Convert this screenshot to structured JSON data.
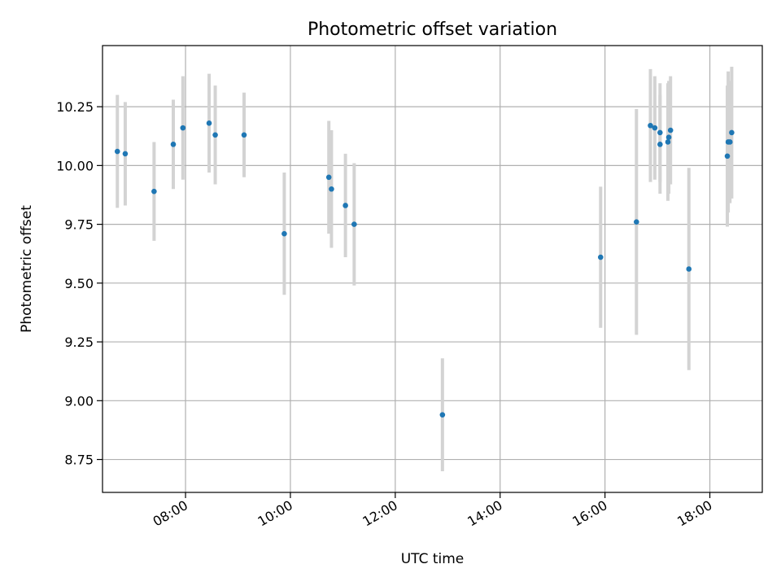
{
  "chart_data": {
    "type": "scatter",
    "title": "Photometric offset variation",
    "xlabel": "UTC time",
    "ylabel": "Photometric offset",
    "x_unit": "hour of day (UTC)",
    "xlim": [
      "06:25",
      "19:00"
    ],
    "ylim": [
      8.61,
      10.51
    ],
    "x_ticks": [
      "08:00",
      "10:00",
      "12:00",
      "14:00",
      "16:00",
      "18:00"
    ],
    "y_ticks": [
      "8.75",
      "9.00",
      "9.25",
      "9.50",
      "9.75",
      "10.00",
      "10.25"
    ],
    "grid": true,
    "legend": "none",
    "colors": {
      "point": "#1f77b4",
      "errorbar": "#d3d3d3",
      "grid": "#b0b0b0"
    },
    "points": [
      {
        "x": "06:42",
        "y": 10.06,
        "err": 0.24
      },
      {
        "x": "06:51",
        "y": 10.05,
        "err": 0.22
      },
      {
        "x": "07:24",
        "y": 9.89,
        "err": 0.21
      },
      {
        "x": "07:46",
        "y": 10.09,
        "err": 0.19
      },
      {
        "x": "07:57",
        "y": 10.16,
        "err": 0.22
      },
      {
        "x": "08:27",
        "y": 10.18,
        "err": 0.21
      },
      {
        "x": "08:34",
        "y": 10.13,
        "err": 0.21
      },
      {
        "x": "09:07",
        "y": 10.13,
        "err": 0.18
      },
      {
        "x": "09:53",
        "y": 9.71,
        "err": 0.26
      },
      {
        "x": "10:44",
        "y": 9.95,
        "err": 0.24
      },
      {
        "x": "10:47",
        "y": 9.9,
        "err": 0.25
      },
      {
        "x": "11:03",
        "y": 9.83,
        "err": 0.22
      },
      {
        "x": "11:13",
        "y": 9.75,
        "err": 0.26
      },
      {
        "x": "12:54",
        "y": 8.94,
        "err": 0.24
      },
      {
        "x": "15:55",
        "y": 9.61,
        "err": 0.3
      },
      {
        "x": "16:36",
        "y": 9.76,
        "err": 0.48
      },
      {
        "x": "16:52",
        "y": 10.17,
        "err": 0.24
      },
      {
        "x": "16:57",
        "y": 10.16,
        "err": 0.22
      },
      {
        "x": "17:03",
        "y": 10.14,
        "err": 0.21
      },
      {
        "x": "17:03",
        "y": 10.09,
        "err": 0.21
      },
      {
        "x": "17:12",
        "y": 10.1,
        "err": 0.25
      },
      {
        "x": "17:13",
        "y": 10.12,
        "err": 0.24
      },
      {
        "x": "17:15",
        "y": 10.15,
        "err": 0.23
      },
      {
        "x": "17:36",
        "y": 9.56,
        "err": 0.43
      },
      {
        "x": "18:20",
        "y": 10.04,
        "err": 0.3
      },
      {
        "x": "18:21",
        "y": 10.1,
        "err": 0.3
      },
      {
        "x": "18:23",
        "y": 10.1,
        "err": 0.26
      },
      {
        "x": "18:25",
        "y": 10.14,
        "err": 0.28
      }
    ]
  }
}
